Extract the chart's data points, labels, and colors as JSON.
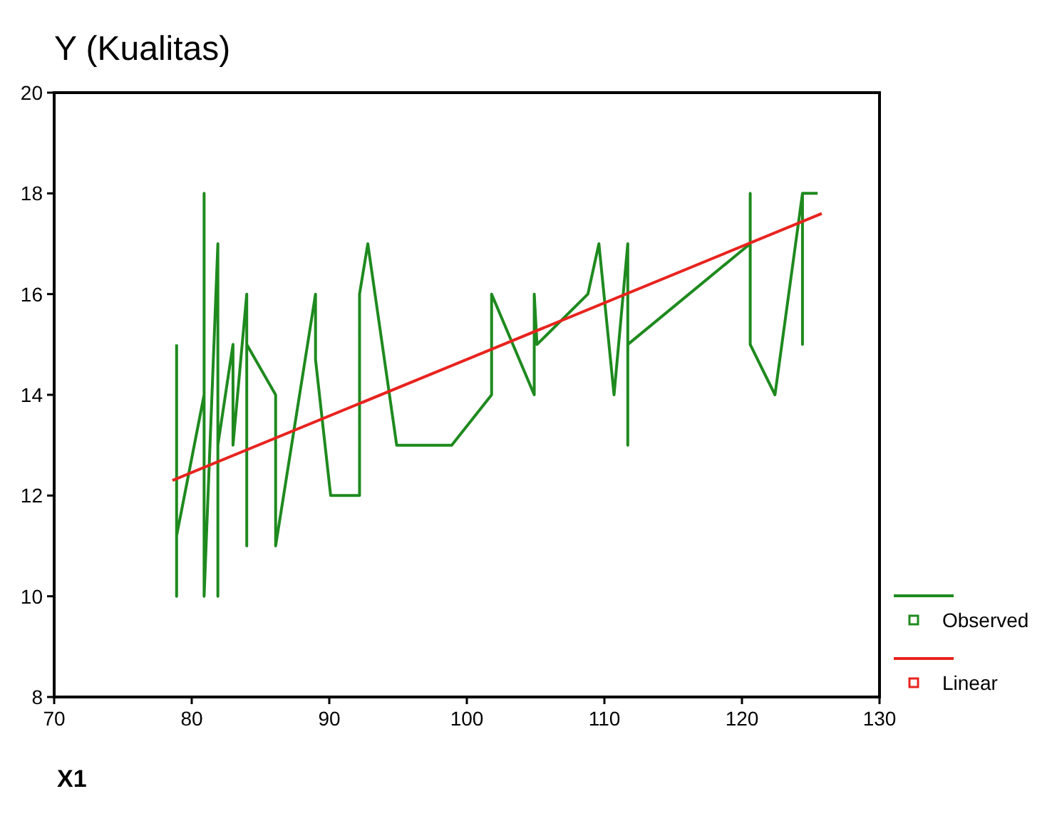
{
  "chart_data": {
    "type": "line",
    "title": "Y (Kualitas)",
    "xlabel": "X1",
    "xlim": [
      70,
      130
    ],
    "xticks": [
      70,
      80,
      90,
      100,
      110,
      120,
      130
    ],
    "ylim": [
      8,
      20
    ],
    "yticks": [
      8,
      10,
      12,
      14,
      16,
      18,
      20
    ],
    "grid": false,
    "legend": "right",
    "series": [
      {
        "name": "Observed",
        "color": "#1e8a1e",
        "x": [
          78.9,
          78.9,
          78.9,
          80.9,
          80.9,
          80.9,
          81.9,
          81.9,
          81.9,
          83.0,
          83.0,
          84.0,
          84.0,
          84.0,
          86.1,
          86.1,
          89.0,
          89.0,
          90.1,
          92.2,
          92.2,
          92.8,
          94.9,
          98.9,
          101.8,
          101.8,
          104.9,
          104.9,
          105.1,
          108.8,
          109.6,
          110.7,
          111.7,
          111.7,
          111.7,
          120.6,
          120.6,
          120.6,
          122.4,
          124.4,
          124.4,
          124.4,
          125.5
        ],
        "values": [
          15,
          10,
          11.2,
          14,
          18,
          10,
          17,
          10,
          13,
          15,
          13,
          16,
          11,
          15,
          14,
          11,
          16,
          14.7,
          12,
          12,
          16,
          17,
          13,
          13,
          14,
          16,
          14,
          16,
          15,
          16,
          17,
          14,
          17,
          13,
          15,
          17,
          18,
          15,
          14,
          18,
          15,
          18,
          18
        ]
      },
      {
        "name": "Linear",
        "color": "#e8231e",
        "x": [
          78.6,
          125.8
        ],
        "values": [
          12.3,
          17.6
        ]
      }
    ]
  }
}
